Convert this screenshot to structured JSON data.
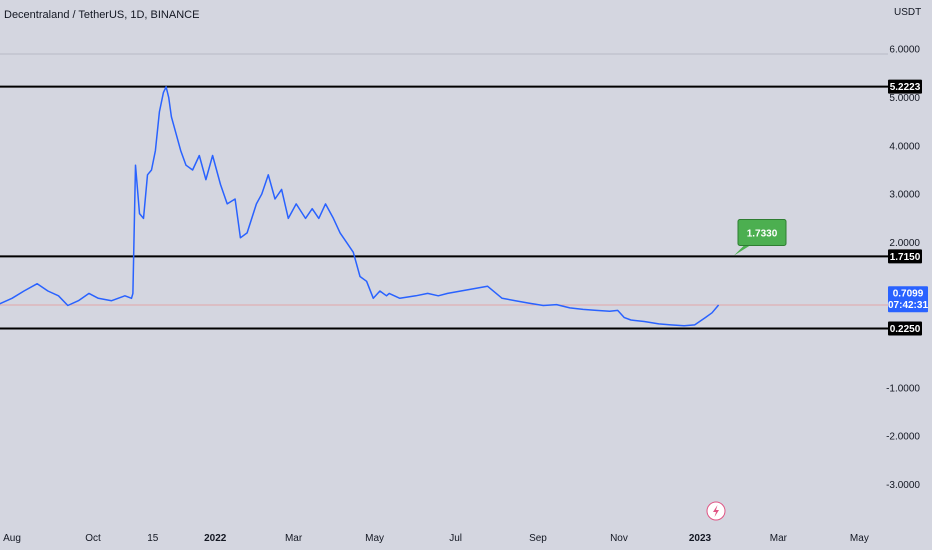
{
  "header": {
    "title": "Decentraland / TetherUS, 1D, BINANCE"
  },
  "price_axis": {
    "currency": "USDT"
  },
  "badges": {
    "level_high": "5.2223",
    "level_mid": "1.7150",
    "level_low": "0.2250",
    "last_price": "0.7099",
    "countdown": "07:42:31",
    "target": "1.7330"
  },
  "colors": {
    "background": "#d4d6e0",
    "price_line": "#2962ff",
    "level_line": "#000000",
    "last_price_badge": "#2962ff",
    "target_callout": "#4caf50"
  },
  "icons": {
    "lightning": "lightning-icon"
  },
  "chart_data": {
    "type": "line",
    "ylim": [
      -3.5,
      6.5
    ],
    "y_ticks": [
      "6.0000",
      "5.0000",
      "4.0000",
      "3.0000",
      "2.0000",
      "1.0000",
      "-1.0000",
      "-2.0000",
      "-3.0000"
    ],
    "y_tick_values": [
      6,
      5,
      4,
      3,
      2,
      1,
      -1,
      -2,
      -3
    ],
    "x_ticks": [
      "Aug",
      "Oct",
      "15",
      "2022",
      "Mar",
      "May",
      "Jul",
      "Sep",
      "Nov",
      "2023",
      "Mar",
      "May"
    ],
    "x_tick_dates": [
      "2021-08-01",
      "2021-10-01",
      "2021-11-15",
      "2022-01-01",
      "2022-03-01",
      "2022-05-01",
      "2022-07-01",
      "2022-09-01",
      "2022-11-01",
      "2023-01-01",
      "2023-03-01",
      "2023-05-01"
    ],
    "horizontal_levels": [
      5.2223,
      1.715,
      0.225
    ],
    "last_price": 0.7099,
    "target": 1.733,
    "series": [
      {
        "x": [
          "2021-07-10",
          "2021-07-20",
          "2021-08-01",
          "2021-08-10",
          "2021-08-20",
          "2021-08-28",
          "2021-09-05",
          "2021-09-12",
          "2021-09-20",
          "2021-09-28",
          "2021-10-05",
          "2021-10-15",
          "2021-10-25",
          "2021-10-30",
          "2021-10-31",
          "2021-11-02",
          "2021-11-05",
          "2021-11-08",
          "2021-11-11",
          "2021-11-14",
          "2021-11-17",
          "2021-11-20",
          "2021-11-23",
          "2021-11-25",
          "2021-11-27",
          "2021-11-29",
          "2021-12-02",
          "2021-12-06",
          "2021-12-10",
          "2021-12-15",
          "2021-12-20",
          "2021-12-25",
          "2021-12-30",
          "2022-01-05",
          "2022-01-10",
          "2022-01-16",
          "2022-01-20",
          "2022-01-25",
          "2022-02-01",
          "2022-02-05",
          "2022-02-10",
          "2022-02-15",
          "2022-02-20",
          "2022-02-25",
          "2022-03-03",
          "2022-03-10",
          "2022-03-15",
          "2022-03-20",
          "2022-03-25",
          "2022-03-31",
          "2022-04-05",
          "2022-04-10",
          "2022-04-15",
          "2022-04-20",
          "2022-04-25",
          "2022-04-30",
          "2022-05-05",
          "2022-05-10",
          "2022-05-12",
          "2022-05-20",
          "2022-06-01",
          "2022-06-10",
          "2022-06-18",
          "2022-06-25",
          "2022-07-05",
          "2022-07-15",
          "2022-07-25",
          "2022-08-05",
          "2022-08-15",
          "2022-08-25",
          "2022-09-05",
          "2022-09-15",
          "2022-09-25",
          "2022-10-05",
          "2022-10-15",
          "2022-10-25",
          "2022-10-31",
          "2022-11-05",
          "2022-11-10",
          "2022-11-20",
          "2022-12-01",
          "2022-12-10",
          "2022-12-20",
          "2022-12-28",
          "2023-01-05",
          "2023-01-10",
          "2023-01-15"
        ],
        "values": [
          0.6,
          0.7,
          0.85,
          1.0,
          1.15,
          1.0,
          0.9,
          0.7,
          0.8,
          0.95,
          0.85,
          0.8,
          0.9,
          0.85,
          0.95,
          3.6,
          2.6,
          2.5,
          3.4,
          3.5,
          3.9,
          4.7,
          5.1,
          5.22,
          5.0,
          4.6,
          4.3,
          3.9,
          3.6,
          3.5,
          3.8,
          3.3,
          3.8,
          3.2,
          2.8,
          2.9,
          2.1,
          2.2,
          2.8,
          3.0,
          3.4,
          2.9,
          3.1,
          2.5,
          2.8,
          2.5,
          2.7,
          2.5,
          2.8,
          2.5,
          2.2,
          2.0,
          1.8,
          1.3,
          1.2,
          0.85,
          1.0,
          0.9,
          0.95,
          0.85,
          0.9,
          0.95,
          0.9,
          0.95,
          1.0,
          1.05,
          1.1,
          0.85,
          0.8,
          0.75,
          0.7,
          0.72,
          0.65,
          0.62,
          0.6,
          0.58,
          0.6,
          0.45,
          0.4,
          0.37,
          0.32,
          0.3,
          0.28,
          0.3,
          0.45,
          0.55,
          0.71
        ]
      }
    ]
  }
}
